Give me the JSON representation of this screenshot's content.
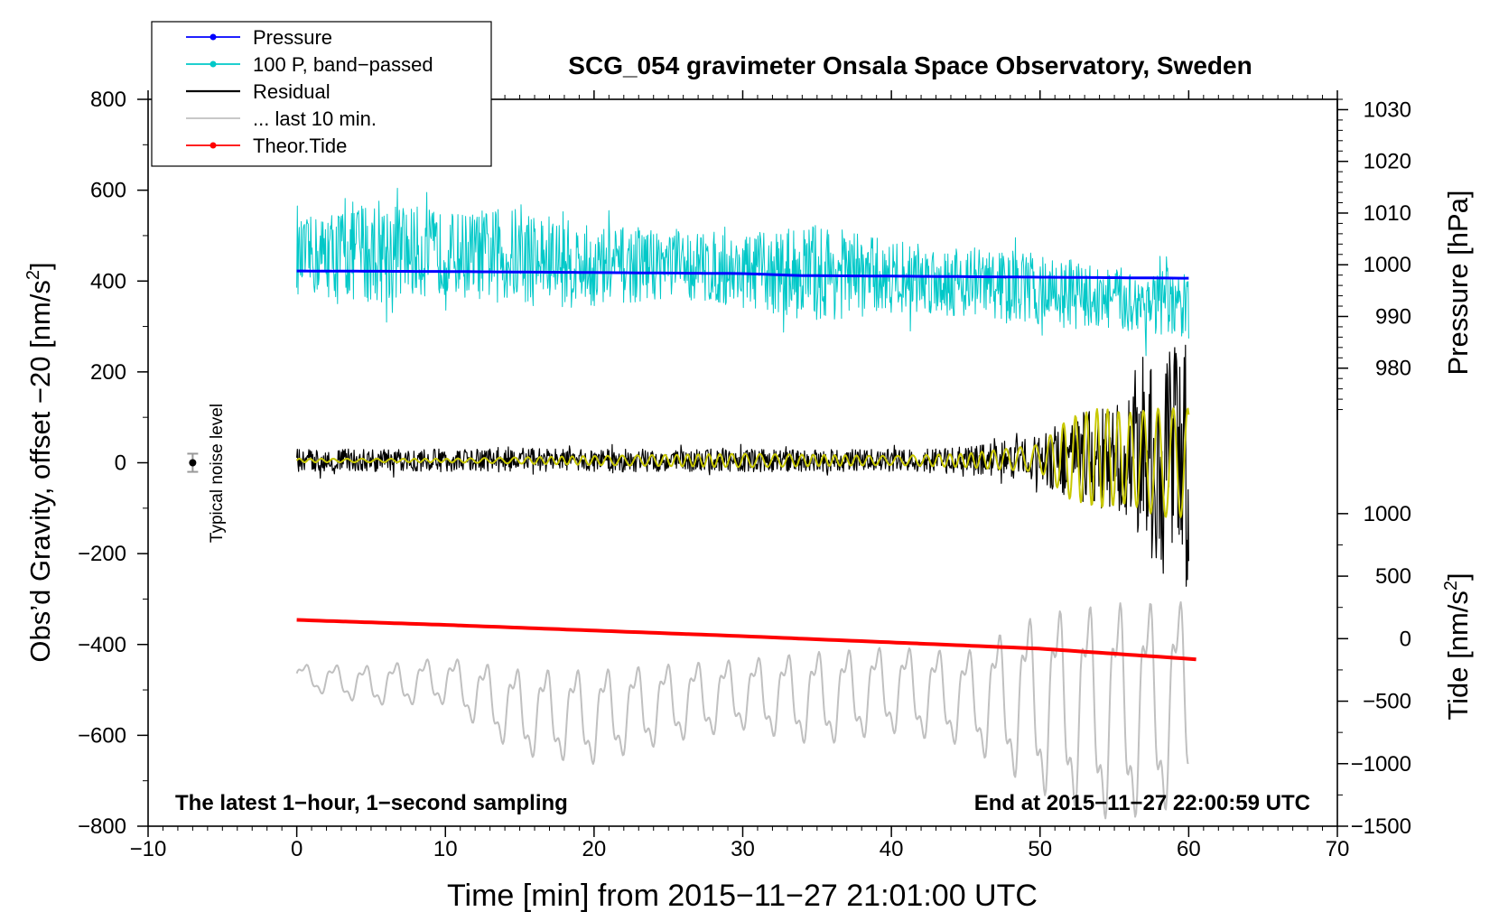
{
  "chart_data": {
    "type": "line",
    "title": "SCG_054 gravimeter Onsala Space Observatory, Sweden",
    "xlabel": "Time [min] from 2015−11−27 21:01:00 UTC",
    "ylabel_left_main": "Obs’d Gravity, offset −20 [nm/s",
    "ylabel_left_sup": "2",
    "ylabel_left_close": "]",
    "ylabel_pressure": "Pressure [hPa]",
    "ylabel_tide_main": "Tide [nm/s",
    "ylabel_tide_sup": "2",
    "ylabel_tide_close": "]",
    "xlim": [
      -10,
      70
    ],
    "ylim": [
      -800,
      800
    ],
    "x_ticks": [
      -10,
      0,
      10,
      20,
      30,
      40,
      50,
      60,
      70
    ],
    "x_tick_labels": [
      "−10",
      "0",
      "10",
      "20",
      "30",
      "40",
      "50",
      "60",
      "70"
    ],
    "y_ticks": [
      -800,
      -600,
      -400,
      -200,
      0,
      200,
      400,
      600,
      800
    ],
    "y_tick_labels": [
      "−800",
      "−600",
      "−400",
      "−200",
      "0",
      "200",
      "400",
      "600",
      "800"
    ],
    "pressure_axis": {
      "range": [
        970,
        1032
      ],
      "ticks": [
        980,
        990,
        1000,
        1010,
        1020,
        1030
      ],
      "tick_labels": [
        "980",
        "990",
        "1000",
        "1010",
        "1020",
        "1030"
      ]
    },
    "tide_axis": {
      "range": [
        -1500,
        1100
      ],
      "ticks": [
        -1500,
        -1000,
        -500,
        0,
        500,
        1000
      ],
      "tick_labels": [
        "−1500",
        "−1000",
        "−500",
        "0",
        "500",
        "1000"
      ]
    },
    "noise_label": "Typical noise level",
    "noise_marker": {
      "x": -7,
      "y": 0,
      "err": 20
    },
    "bottom_left_note": "The latest 1−hour, 1−second sampling",
    "bottom_right_note": "End at 2015−11−27 22:00:59 UTC",
    "legend": [
      {
        "label": "Pressure",
        "color": "#0000ff",
        "marker": true
      },
      {
        "label": "100 P, band−passed",
        "color": "#00c8c8",
        "marker": true
      },
      {
        "label": "Residual",
        "color": "#000000",
        "marker": false
      },
      {
        "label": "... last 10 min.",
        "color": "#c0c0c0",
        "marker": false
      },
      {
        "label": "Theor.Tide",
        "color": "#ff0000",
        "marker": true
      }
    ],
    "series": [
      {
        "name": "Pressure",
        "color": "#0000ff",
        "axis": "pressure",
        "x": [
          0,
          10,
          20,
          30,
          34,
          40,
          50,
          60
        ],
        "values": [
          998.8,
          998.7,
          998.5,
          998.3,
          997.9,
          997.8,
          997.6,
          997.4
        ]
      },
      {
        "name": "100 P, band-passed",
        "color": "#00c8c8",
        "axis": "left",
        "x": [
          0,
          5,
          10,
          15,
          20,
          25,
          30,
          35,
          40,
          45,
          50,
          55,
          60
        ],
        "values": [
          450,
          470,
          460,
          455,
          430,
          440,
          420,
          420,
          410,
          400,
          380,
          360,
          340
        ],
        "envelope": [
          80,
          120,
          90,
          110,
          90,
          80,
          80,
          110,
          80,
          80,
          80,
          70,
          80
        ]
      },
      {
        "name": "Residual",
        "color": "#000000",
        "axis": "left",
        "x": [
          0,
          10,
          20,
          30,
          40,
          45,
          50,
          52,
          54,
          56,
          58,
          60
        ],
        "values": [
          5,
          5,
          5,
          5,
          5,
          5,
          10,
          10,
          10,
          10,
          0,
          0
        ],
        "envelope": [
          25,
          25,
          25,
          25,
          25,
          30,
          50,
          100,
          110,
          130,
          240,
          280
        ]
      },
      {
        "name": "Band-passed residual",
        "color": "#c8c800",
        "axis": "left",
        "x": [
          0,
          10,
          20,
          30,
          40,
          45,
          50,
          52,
          54,
          56,
          58,
          60
        ],
        "values": [
          5,
          5,
          5,
          5,
          5,
          5,
          10,
          10,
          10,
          10,
          0,
          0
        ],
        "envelope": [
          4,
          4,
          10,
          15,
          10,
          15,
          30,
          90,
          110,
          100,
          120,
          120
        ]
      },
      {
        "name": "... last 10 min.",
        "color": "#c0c0c0",
        "axis": "left",
        "x": [
          0,
          5,
          10,
          15,
          20,
          25,
          30,
          35,
          40,
          45,
          50,
          55,
          60
        ],
        "values": [
          -470,
          -490,
          -480,
          -550,
          -560,
          -530,
          -510,
          -520,
          -500,
          -520,
          -530,
          -550,
          -530
        ],
        "envelope": [
          30,
          50,
          60,
          110,
          120,
          100,
          90,
          120,
          110,
          120,
          230,
          280,
          260
        ]
      },
      {
        "name": "Theor.Tide",
        "color": "#ff0000",
        "axis": "tide",
        "x": [
          0,
          10,
          20,
          30,
          40,
          50,
          60.5
        ],
        "values": [
          150,
          110,
          65,
          20,
          -30,
          -80,
          -165
        ]
      }
    ]
  }
}
